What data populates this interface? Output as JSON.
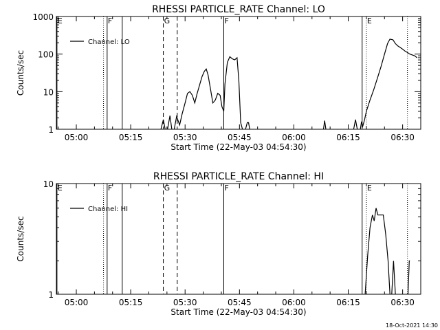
{
  "footer_timestamp": "18-Oct-2021 14:30",
  "chart_data": [
    {
      "type": "line",
      "title": "RHESSI PARTICLE_RATE Channel: LO",
      "xlabel": "Start Time (22-May-03 04:54:30)",
      "ylabel": "Counts/sec",
      "yscale": "log",
      "xlim": [
        "04:54:30",
        "06:35:00"
      ],
      "ylim": [
        1,
        1000
      ],
      "x_ticks": [
        "05:00",
        "05:15",
        "05:30",
        "05:45",
        "06:00",
        "06:15",
        "06:30"
      ],
      "y_ticks": [
        "1",
        "10",
        "100",
        "1000"
      ],
      "legend": {
        "label": "Channel: LO",
        "placement": "top-left"
      },
      "markers": [
        {
          "label": "E",
          "time": "04:54:40",
          "style": "solid"
        },
        {
          "label": "",
          "time": "05:07:30",
          "style": "dotted"
        },
        {
          "label": "F",
          "time": "05:08:30",
          "style": "solid"
        },
        {
          "label": "",
          "time": "05:12:40",
          "style": "solid"
        },
        {
          "label": "G",
          "time": "05:24:00",
          "style": "dashed"
        },
        {
          "label": "",
          "time": "05:27:50",
          "style": "dashed"
        },
        {
          "label": "F",
          "time": "05:40:40",
          "style": "solid"
        },
        {
          "label": "",
          "time": "06:18:50",
          "style": "solid"
        },
        {
          "label": "E",
          "time": "06:20:00",
          "style": "dotted"
        },
        {
          "label": "",
          "time": "06:31:20",
          "style": "dotted"
        }
      ],
      "series": [
        {
          "segments": [
            [
              [
                "05:23:20",
                1
              ],
              [
                "05:24:00",
                1.8
              ],
              [
                "05:24:30",
                1
              ]
            ],
            [
              [
                "05:25:10",
                1
              ],
              [
                "05:25:50",
                2.3
              ],
              [
                "05:26:20",
                1
              ]
            ],
            [
              [
                "05:27:00",
                1
              ],
              [
                "05:27:40",
                2.2
              ],
              [
                "05:28:30",
                1.3
              ],
              [
                "05:29:10",
                2.5
              ],
              [
                "05:30:00",
                5
              ],
              [
                "05:30:40",
                9
              ],
              [
                "05:31:20",
                10
              ],
              [
                "05:32:00",
                8
              ],
              [
                "05:32:40",
                5
              ],
              [
                "05:33:20",
                9
              ],
              [
                "05:34:00",
                15
              ],
              [
                "05:34:40",
                25
              ],
              [
                "05:35:20",
                35
              ],
              [
                "05:35:50",
                40
              ],
              [
                "05:36:20",
                28
              ],
              [
                "05:37:00",
                12
              ],
              [
                "05:37:40",
                5
              ],
              [
                "05:38:20",
                6
              ],
              [
                "05:39:00",
                9
              ],
              [
                "05:39:40",
                8
              ],
              [
                "05:40:10",
                4
              ],
              [
                "05:40:40",
                3
              ],
              [
                "05:41:00",
                16
              ],
              [
                "05:41:40",
                60
              ],
              [
                "05:42:20",
                85
              ],
              [
                "05:43:00",
                75
              ],
              [
                "05:43:40",
                70
              ],
              [
                "05:44:20",
                80
              ],
              [
                "05:44:50",
                20
              ],
              [
                "05:45:20",
                1.5
              ],
              [
                "05:45:50",
                1
              ]
            ],
            [
              [
                "05:46:40",
                1
              ],
              [
                "05:47:10",
                1.5
              ],
              [
                "05:47:30",
                1.5
              ],
              [
                "05:47:50",
                1
              ]
            ],
            [
              [
                "06:08:10",
                1
              ],
              [
                "06:08:30",
                1.7
              ],
              [
                "06:08:50",
                1
              ]
            ],
            [
              [
                "06:16:30",
                1
              ],
              [
                "06:17:00",
                1.8
              ],
              [
                "06:17:30",
                1
              ]
            ],
            [
              [
                "06:18:20",
                1
              ],
              [
                "06:18:40",
                1.6
              ],
              [
                "06:19:00",
                1.2
              ],
              [
                "06:19:30",
                1.8
              ],
              [
                "06:20:00",
                3
              ],
              [
                "06:21:00",
                6
              ],
              [
                "06:22:00",
                11
              ],
              [
                "06:23:00",
                22
              ],
              [
                "06:24:00",
                45
              ],
              [
                "06:25:00",
                100
              ],
              [
                "06:25:50",
                190
              ],
              [
                "06:26:30",
                250
              ],
              [
                "06:27:20",
                240
              ],
              [
                "06:28:00",
                190
              ],
              [
                "06:28:40",
                165
              ],
              [
                "06:29:20",
                150
              ],
              [
                "06:30:00",
                135
              ],
              [
                "06:30:40",
                120
              ],
              [
                "06:31:20",
                110
              ],
              [
                "06:32:00",
                100
              ],
              [
                "06:32:40",
                95
              ],
              [
                "06:33:20",
                90
              ],
              [
                "06:34:00",
                80
              ]
            ]
          ]
        }
      ]
    },
    {
      "type": "line",
      "title": "RHESSI PARTICLE_RATE Channel: HI",
      "xlabel": "Start Time (22-May-03 04:54:30)",
      "ylabel": "Counts/sec",
      "yscale": "log",
      "xlim": [
        "04:54:30",
        "06:35:00"
      ],
      "ylim": [
        1,
        10
      ],
      "x_ticks": [
        "05:00",
        "05:15",
        "05:30",
        "05:45",
        "06:00",
        "06:15",
        "06:30"
      ],
      "y_ticks": [
        "1",
        "10"
      ],
      "legend": {
        "label": "Channel: HI",
        "placement": "top-left"
      },
      "markers": [
        {
          "label": "E",
          "time": "04:54:40",
          "style": "solid"
        },
        {
          "label": "",
          "time": "05:07:30",
          "style": "dotted"
        },
        {
          "label": "F",
          "time": "05:08:30",
          "style": "solid"
        },
        {
          "label": "",
          "time": "05:12:40",
          "style": "solid"
        },
        {
          "label": "G",
          "time": "05:24:00",
          "style": "dashed"
        },
        {
          "label": "",
          "time": "05:27:50",
          "style": "dashed"
        },
        {
          "label": "F",
          "time": "05:40:40",
          "style": "solid"
        },
        {
          "label": "",
          "time": "06:18:50",
          "style": "solid"
        },
        {
          "label": "E",
          "time": "06:20:00",
          "style": "dotted"
        },
        {
          "label": "",
          "time": "06:31:20",
          "style": "dotted"
        }
      ],
      "series": [
        {
          "segments": [
            [
              [
                "06:19:40",
                1
              ],
              [
                "06:20:20",
                2.2
              ],
              [
                "06:21:00",
                4
              ],
              [
                "06:21:40",
                5.2
              ],
              [
                "06:22:10",
                4.6
              ],
              [
                "06:22:40",
                6
              ],
              [
                "06:23:10",
                5.2
              ],
              [
                "06:24:00",
                5.2
              ],
              [
                "06:24:40",
                5.2
              ],
              [
                "06:25:20",
                3.5
              ],
              [
                "06:26:00",
                2
              ],
              [
                "06:26:30",
                1
              ]
            ],
            [
              [
                "06:27:00",
                1
              ],
              [
                "06:27:30",
                2
              ],
              [
                "06:28:00",
                1
              ]
            ],
            [
              [
                "06:31:30",
                1
              ],
              [
                "06:31:50",
                2
              ],
              [
                "06:32:00",
                2
              ]
            ]
          ]
        }
      ]
    }
  ]
}
